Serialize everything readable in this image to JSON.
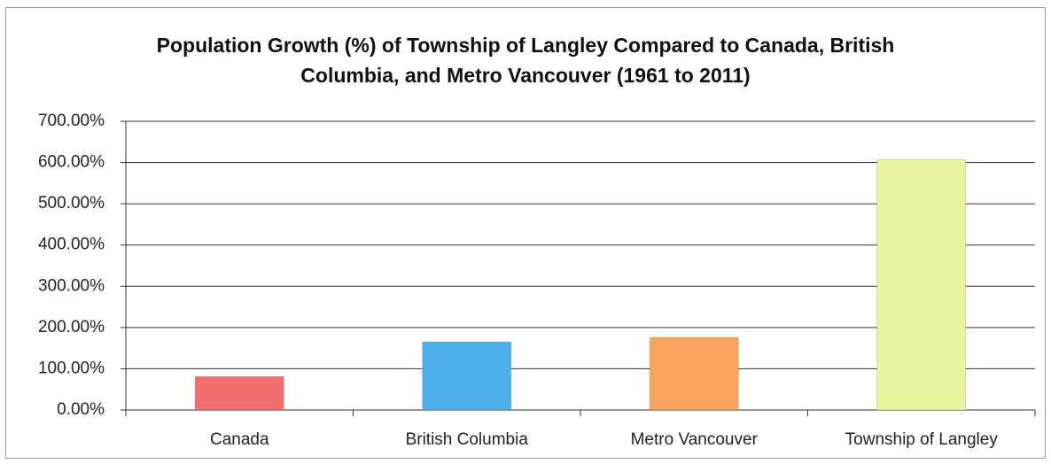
{
  "chart_data": {
    "type": "bar",
    "title": "Population Growth (%) of Township of Langley Compared to Canada, British Columbia, and Metro Vancouver (1961 to 2011)",
    "categories": [
      "Canada",
      "British Columbia",
      "Metro Vancouver",
      "Township of Langley"
    ],
    "values": [
      81,
      165,
      176,
      607
    ],
    "colors": [
      "#f26d6d",
      "#4cb1ea",
      "#f9a35f",
      "#e9f59c"
    ],
    "ylim": [
      0,
      700
    ],
    "yticks": [
      {
        "value": 0,
        "label": "0.00%"
      },
      {
        "value": 100,
        "label": "100.00%"
      },
      {
        "value": 200,
        "label": "200.00%"
      },
      {
        "value": 300,
        "label": "300.00%"
      },
      {
        "value": 400,
        "label": "400.00%"
      },
      {
        "value": 500,
        "label": "500.00%"
      },
      {
        "value": 600,
        "label": "600.00%"
      },
      {
        "value": 700,
        "label": "700.00%"
      }
    ],
    "grid": true
  }
}
